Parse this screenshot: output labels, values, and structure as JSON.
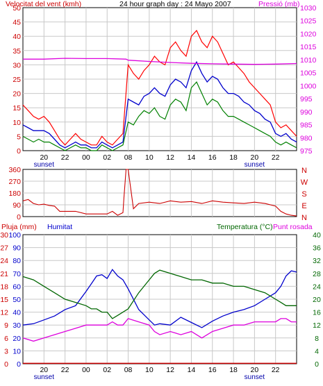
{
  "colors": {
    "wind": "#ff0000",
    "gust_alt": "#ff0000",
    "wind_avg": "#0000cc",
    "gust": "#008000",
    "pressure": "#dd00dd",
    "direction": "#cc0000",
    "rain": "#cc0000",
    "humidity": "#0000cc",
    "temperature": "#006600",
    "dewpoint": "#dd00dd",
    "grid": "#c8c8c8",
    "frame": "#000000"
  },
  "time_axis": {
    "ticks": [
      {
        "h": 20,
        "label": "20"
      },
      {
        "h": 22,
        "label": "22"
      },
      {
        "h": 24,
        "label": "00"
      },
      {
        "h": 26,
        "label": "02"
      },
      {
        "h": 28,
        "label": "08"
      },
      {
        "h": 30,
        "label": "10"
      },
      {
        "h": 32,
        "label": "12"
      },
      {
        "h": 34,
        "label": "14"
      },
      {
        "h": 36,
        "label": "16"
      },
      {
        "h": 38,
        "label": "18"
      },
      {
        "h": 40,
        "label": "20"
      },
      {
        "h": 42,
        "label": "22"
      }
    ],
    "sunset_label": "sunset",
    "sunset_positions": [
      20,
      40
    ],
    "range": [
      18,
      44
    ]
  },
  "chart_data": [
    {
      "type": "line",
      "name": "wind",
      "title": "24 hour graph day : 24 Mayo 2007",
      "ylabel_left": "Velocitat del vent (kmh)",
      "ylabel_right": "Pressió (mb)",
      "ylim_left": [
        0,
        50
      ],
      "ylim_right": [
        975,
        1030
      ],
      "yticks_left": [
        "0",
        "5",
        "10",
        "15",
        "20",
        "25",
        "30",
        "35",
        "40",
        "45",
        "50"
      ],
      "yticks_right": [
        "975",
        "980",
        "985",
        "990",
        "995",
        "1000",
        "1005",
        "1010",
        "1015",
        "1020",
        "1025",
        "1030"
      ],
      "grid": true,
      "series": [
        {
          "key": "gust",
          "axis": "left",
          "x": [
            18,
            18.5,
            19,
            19.5,
            20,
            20.5,
            21,
            21.5,
            22,
            22.5,
            23,
            23.5,
            24,
            24.5,
            25,
            25.5,
            26,
            26.5,
            27,
            27.5,
            28,
            28.5,
            29,
            29.5,
            30,
            30.5,
            31,
            31.5,
            32,
            32.5,
            33,
            33.5,
            34,
            34.5,
            35,
            35.5,
            36,
            36.5,
            37,
            37.5,
            38,
            38.5,
            39,
            39.5,
            40,
            40.5,
            41,
            41.5,
            42,
            42.5,
            43,
            43.5,
            44
          ],
          "y": [
            16,
            14,
            12,
            11,
            12,
            10,
            7,
            4,
            2,
            4,
            6,
            4,
            3,
            2,
            2,
            5,
            3,
            2,
            4,
            6,
            30,
            27,
            25,
            28,
            30,
            33,
            31,
            30,
            36,
            38,
            35,
            33,
            40,
            42,
            38,
            36,
            40,
            38,
            34,
            30,
            31,
            29,
            27,
            24,
            22,
            20,
            18,
            16,
            10,
            8,
            9,
            7,
            5
          ]
        },
        {
          "key": "wind_avg",
          "axis": "left",
          "x": [
            18,
            18.5,
            19,
            19.5,
            20,
            20.5,
            21,
            21.5,
            22,
            22.5,
            23,
            23.5,
            24,
            24.5,
            25,
            25.5,
            26,
            26.5,
            27,
            27.5,
            28,
            28.5,
            29,
            29.5,
            30,
            30.5,
            31,
            31.5,
            32,
            32.5,
            33,
            33.5,
            34,
            34.5,
            35,
            35.5,
            36,
            36.5,
            37,
            37.5,
            38,
            38.5,
            39,
            39.5,
            40,
            40.5,
            41,
            41.5,
            42,
            42.5,
            43,
            43.5,
            44
          ],
          "y": [
            9,
            8,
            7,
            7,
            7,
            6,
            4,
            2,
            1,
            2,
            3,
            2,
            2,
            1,
            1,
            3,
            2,
            1,
            2,
            3,
            18,
            17,
            16,
            19,
            20,
            22,
            20,
            19,
            23,
            25,
            24,
            22,
            28,
            31,
            27,
            24,
            26,
            25,
            22,
            20,
            20,
            19,
            17,
            16,
            14,
            13,
            11,
            10,
            6,
            5,
            6,
            4,
            3
          ]
        },
        {
          "key": "gust_mid",
          "axis": "left",
          "x": [
            18,
            18.5,
            19,
            19.5,
            20,
            20.5,
            21,
            21.5,
            22,
            22.5,
            23,
            23.5,
            24,
            24.5,
            25,
            25.5,
            26,
            26.5,
            27,
            27.5,
            28,
            28.5,
            29,
            29.5,
            30,
            30.5,
            31,
            31.5,
            32,
            32.5,
            33,
            33.5,
            34,
            34.5,
            35,
            35.5,
            36,
            36.5,
            37,
            37.5,
            38,
            38.5,
            39,
            39.5,
            40,
            40.5,
            41,
            41.5,
            42,
            42.5,
            43,
            43.5,
            44
          ],
          "y": [
            5,
            4,
            3,
            4,
            3,
            3,
            2,
            1,
            0,
            1,
            2,
            1,
            1,
            0,
            0,
            2,
            1,
            0,
            1,
            2,
            10,
            9,
            12,
            14,
            13,
            15,
            12,
            11,
            16,
            18,
            17,
            14,
            22,
            24,
            20,
            16,
            18,
            17,
            14,
            12,
            12,
            11,
            10,
            9,
            8,
            7,
            6,
            5,
            3,
            2,
            3,
            2,
            1
          ]
        },
        {
          "key": "pressure",
          "axis": "right",
          "x": [
            18,
            20,
            22,
            24,
            26,
            27.8,
            28,
            30,
            32,
            34,
            36,
            38,
            40,
            42,
            44
          ],
          "y": [
            1010.2,
            1010.2,
            1010.5,
            1010.4,
            1010.4,
            1010.2,
            1009.8,
            1009.3,
            1008.9,
            1008.6,
            1008.4,
            1008.3,
            1008.2,
            1008.3,
            1008.5
          ]
        }
      ]
    },
    {
      "type": "line",
      "name": "direction",
      "ylim": [
        0,
        360
      ],
      "yticks": [
        "0",
        "90",
        "180",
        "270",
        "360"
      ],
      "compass_labels": [
        "N",
        "W",
        "S",
        "E",
        "N"
      ],
      "grid": true,
      "series": [
        {
          "key": "direction",
          "x": [
            18,
            18.5,
            19,
            19.5,
            20,
            20.5,
            21,
            21.5,
            22,
            23,
            24,
            25,
            26,
            26.5,
            27,
            27.5,
            27.6,
            27.8,
            28,
            28.5,
            29,
            30,
            31,
            32,
            33,
            34,
            35,
            36,
            37,
            38,
            39,
            40,
            41,
            42,
            42.5,
            43,
            43.5,
            44
          ],
          "y": [
            120,
            130,
            100,
            90,
            95,
            85,
            80,
            40,
            40,
            40,
            20,
            20,
            20,
            40,
            10,
            30,
            150,
            360,
            360,
            60,
            100,
            110,
            100,
            120,
            110,
            115,
            100,
            120,
            110,
            105,
            100,
            110,
            100,
            80,
            40,
            20,
            10,
            5
          ]
        }
      ]
    },
    {
      "type": "line",
      "name": "humidity-temp",
      "ylabel_left": "Pluja (mm)",
      "ylabel_left2": "Humitat",
      "ylabel_right": "Temperatura (°C)",
      "ylabel_right2": "Punt rosada",
      "ylim_rain": [
        0,
        30
      ],
      "ylim_humidity": [
        0,
        100
      ],
      "ylim_temp": [
        0,
        40
      ],
      "yticks_rain": [
        "0",
        "3",
        "6",
        "9",
        "12",
        "15",
        "18",
        "21",
        "24",
        "27",
        "30"
      ],
      "yticks_humidity": [
        "0",
        "10",
        "20",
        "30",
        "40",
        "50",
        "60",
        "70",
        "80",
        "90",
        "100"
      ],
      "yticks_temp": [
        "0",
        "4",
        "8",
        "12",
        "16",
        "20",
        "24",
        "28",
        "32",
        "36",
        "40"
      ],
      "grid": true,
      "series": [
        {
          "key": "rain",
          "axis": "rain",
          "x": [
            18,
            44
          ],
          "y": [
            0.1,
            0.1
          ]
        },
        {
          "key": "humidity",
          "axis": "humidity",
          "x": [
            18,
            19,
            20,
            21,
            22,
            23,
            24,
            24.5,
            25,
            25.5,
            26,
            26.5,
            27,
            27.5,
            28,
            29,
            30,
            30.5,
            31,
            32,
            33,
            34,
            35,
            36,
            37,
            38,
            39,
            40,
            41,
            42,
            42.5,
            43,
            43.5,
            44
          ],
          "y": [
            30,
            31,
            34,
            37,
            42,
            45,
            56,
            62,
            68,
            69,
            66,
            73,
            68,
            65,
            58,
            42,
            34,
            30,
            31,
            30,
            36,
            32,
            28,
            33,
            37,
            40,
            42,
            45,
            50,
            55,
            60,
            68,
            72,
            71
          ]
        },
        {
          "key": "temperature",
          "axis": "temp",
          "x": [
            18,
            19,
            20,
            21,
            22,
            23,
            24,
            24.5,
            25,
            25.5,
            26,
            26.5,
            27,
            27.5,
            28,
            29,
            30,
            30.5,
            31,
            32,
            33,
            34,
            35,
            36,
            37,
            38,
            39,
            40,
            41,
            42,
            42.5,
            43,
            43.5,
            44
          ],
          "y": [
            27,
            26,
            24,
            22,
            20,
            19,
            18,
            17,
            17,
            16,
            16,
            14,
            15,
            16,
            17,
            22,
            26,
            28,
            29,
            28,
            27,
            26,
            26,
            25,
            25,
            24,
            24,
            23,
            22,
            20,
            19,
            18,
            18,
            18
          ]
        },
        {
          "key": "dewpoint",
          "axis": "temp",
          "x": [
            18,
            19,
            20,
            21,
            22,
            23,
            24,
            24.5,
            25,
            25.5,
            26,
            26.5,
            27,
            27.5,
            28,
            29,
            30,
            30.5,
            31,
            32,
            33,
            34,
            35,
            36,
            37,
            38,
            39,
            40,
            41,
            42,
            42.5,
            43,
            43.5,
            44
          ],
          "y": [
            8,
            7,
            8,
            9,
            10,
            11,
            12,
            12,
            12,
            12,
            12,
            13,
            12,
            12,
            14,
            13,
            12,
            10,
            9,
            10,
            9,
            10,
            8,
            10,
            11,
            12,
            12,
            13,
            13,
            13,
            14,
            14,
            13,
            13
          ]
        }
      ]
    }
  ]
}
